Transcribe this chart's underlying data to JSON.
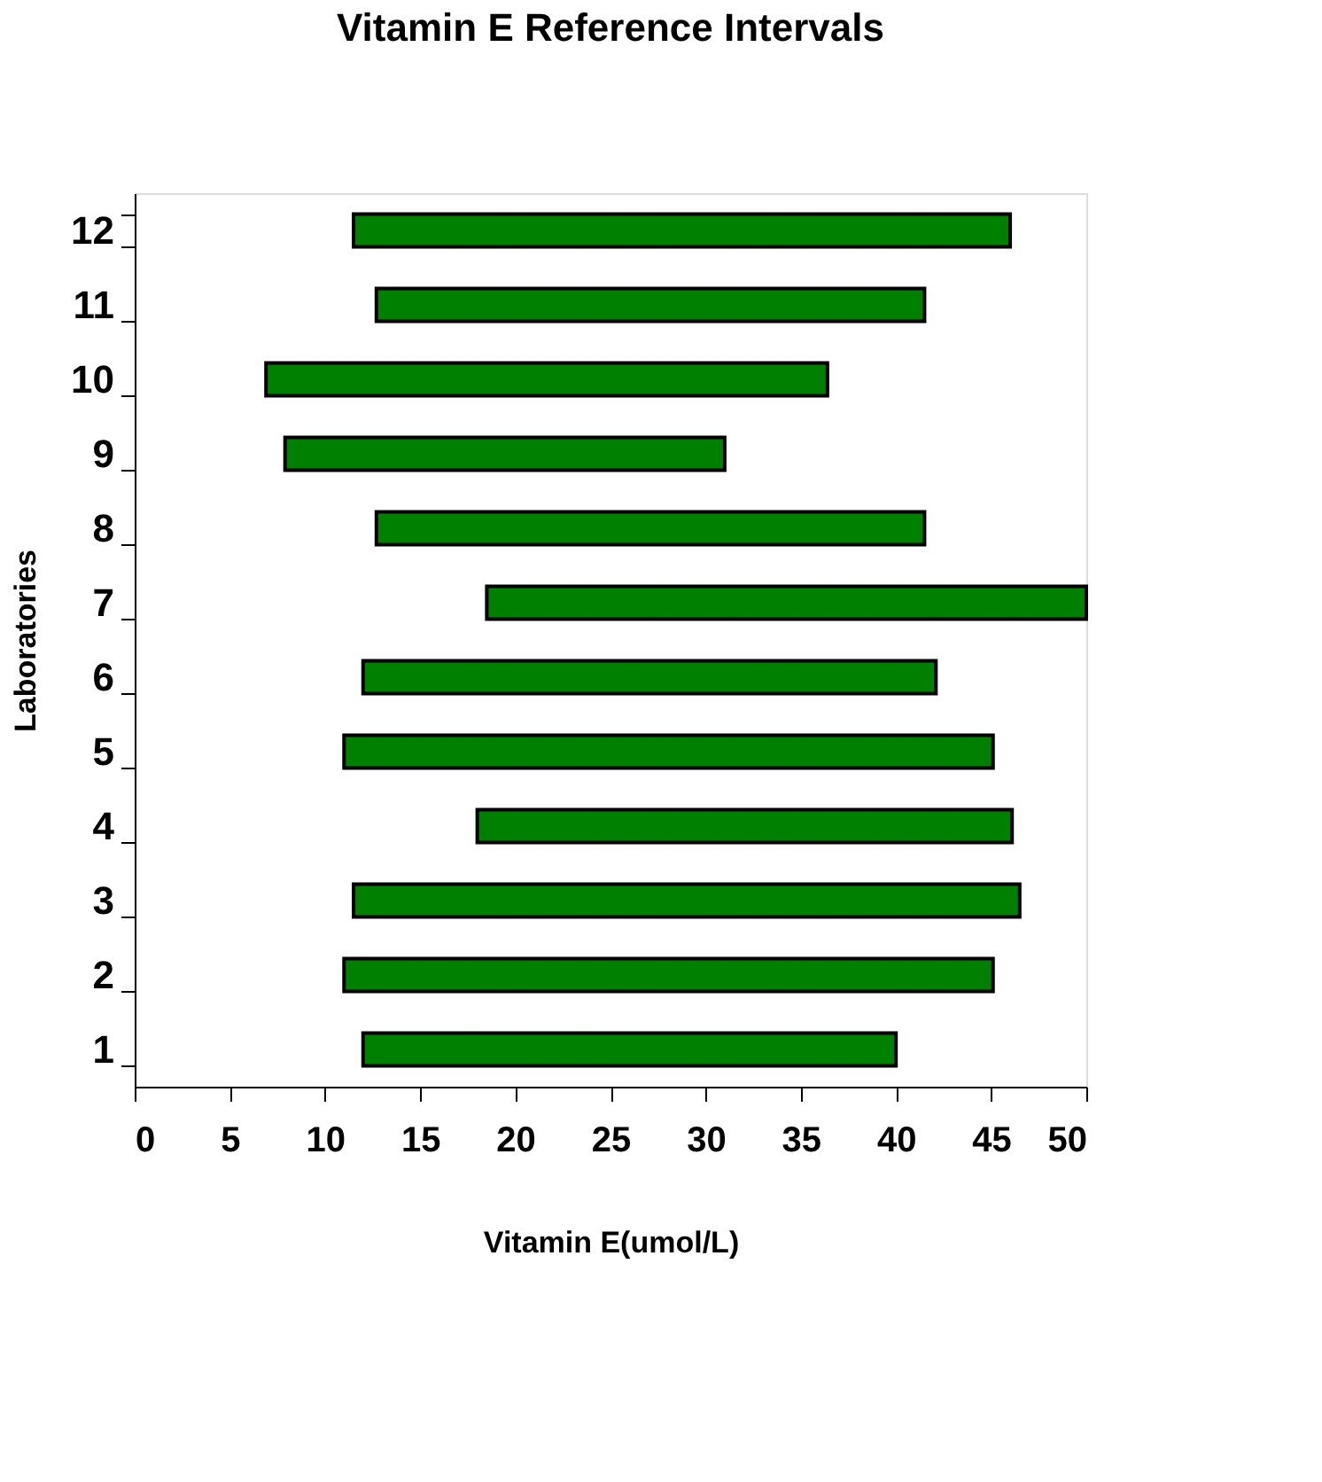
{
  "chart_data": {
    "type": "bar",
    "orientation": "horizontal",
    "title": "Vitamin E Reference Intervals",
    "xlabel": "Vitamin E(umol/L)",
    "ylabel": "Laboratories",
    "categories": [
      "12",
      "11",
      "10",
      "9",
      "8",
      "7",
      "6",
      "5",
      "4",
      "3",
      "2",
      "1"
    ],
    "base": [
      11.5,
      12.7,
      6.9,
      7.9,
      12.7,
      18.5,
      12.0,
      11.0,
      18.0,
      11.5,
      11.0,
      12.0
    ],
    "values": [
      34.5,
      28.8,
      29.5,
      23.1,
      28.8,
      31.5,
      30.1,
      34.1,
      28.1,
      35.0,
      34.1,
      28.0
    ],
    "color": "#008000",
    "xlim": [
      0,
      50
    ],
    "xticks": [
      0,
      5,
      10,
      15,
      20,
      25,
      30,
      35,
      40,
      45,
      50
    ],
    "grid": false
  }
}
